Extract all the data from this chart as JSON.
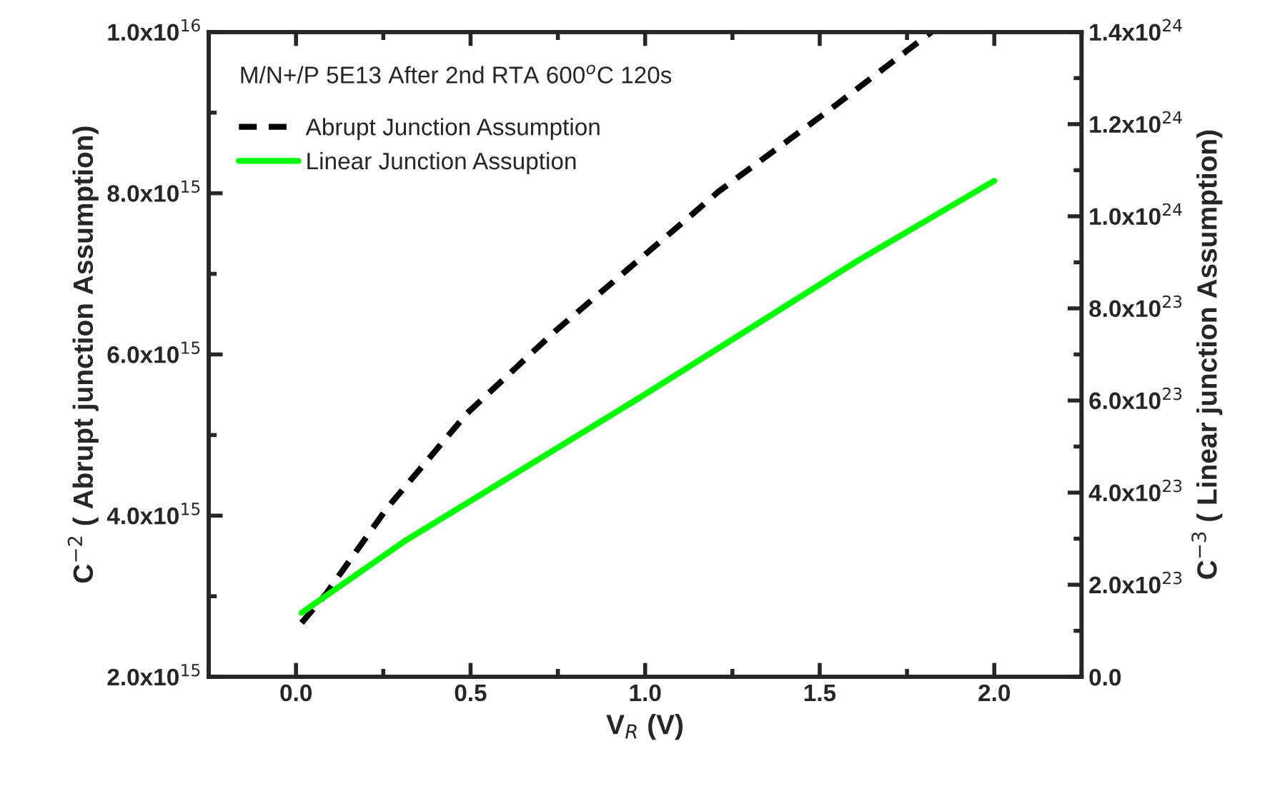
{
  "chart_data": {
    "type": "line",
    "xlabel": "V$_{R}$ (V)",
    "ylabel": "C$^{−2}$ ( Abrupt junction Assumption)",
    "y2label": "C$^{−3}$ ( Linear junction Assumption)",
    "annotations": [
      "M/N+/P 5E13 After 2nd RTA 600$^{o}$C 120s"
    ],
    "series": [
      {
        "name": "Abrupt Junction Assumption",
        "color": "#000000",
        "line_style": "dashed",
        "x": [
          0.016,
          0.086,
          0.26,
          0.49,
          0.74,
          1.13,
          1.21,
          1.53,
          1.82
        ],
        "values": [
          2670000000000000.0,
          3030000000000000.0,
          4090000000000000.0,
          5270000000000000.0,
          6280000000000000.0,
          7720000000000000.0,
          8020000000000000.0,
          9040000000000000.0,
          1e+16
        ]
      },
      {
        "name": "Linear Junction Assuption",
        "color": "#00ff00",
        "line_style": "solid",
        "axis": "y2",
        "x": [
          0.016,
          0.31,
          0.98,
          1.61,
          2.0
        ],
        "values": [
          1.39e+23,
          2.94e+23,
          6.04e+23,
          9.04e+23,
          1.077e+24
        ]
      }
    ],
    "xlim": [
      -0.25,
      2.25
    ],
    "xticks": [
      {
        "value": 0,
        "label": "0.0"
      },
      0.5,
      {
        "value": 1,
        "label": "1.0"
      },
      1.5,
      {
        "value": 2,
        "label": "2.0"
      }
    ],
    "ylim": [
      2000000000000000.0,
      1e+16
    ],
    "yticks": [
      {
        "value": 2000000000000000.0,
        "label": "2.0x10$^{15}$"
      },
      {
        "value": 4000000000000000.0,
        "label": "4.0x10$^{15}$"
      },
      {
        "value": 6000000000000000.0,
        "label": "6.0x10$^{15}$"
      },
      {
        "value": 8000000000000000.0,
        "label": "8.0x10$^{15}$"
      },
      {
        "value": 1e+16,
        "label": "1.0x10$^{16}$"
      }
    ],
    "y2lim": [
      0,
      1.4e+24
    ],
    "y2ticks": [
      {
        "value": 0,
        "label": "0.0"
      },
      {
        "value": 2e+23,
        "label": "2.0x10$^{23}$"
      },
      {
        "value": 4e+23,
        "label": "4.0x10$^{23}$"
      },
      {
        "value": 6e+23,
        "label": "6.0x10$^{23}$"
      },
      {
        "value": 8e+23,
        "label": "8.0x10$^{23}$"
      },
      {
        "value": 1e+24,
        "label": "1.0x10$^{24}$"
      },
      {
        "value": 1.2e+24,
        "label": "1.2x10$^{24}$"
      },
      {
        "value": 1.4e+24,
        "label": "1.4x10$^{24}$"
      }
    ],
    "legend": "top left",
    "grid": false
  }
}
